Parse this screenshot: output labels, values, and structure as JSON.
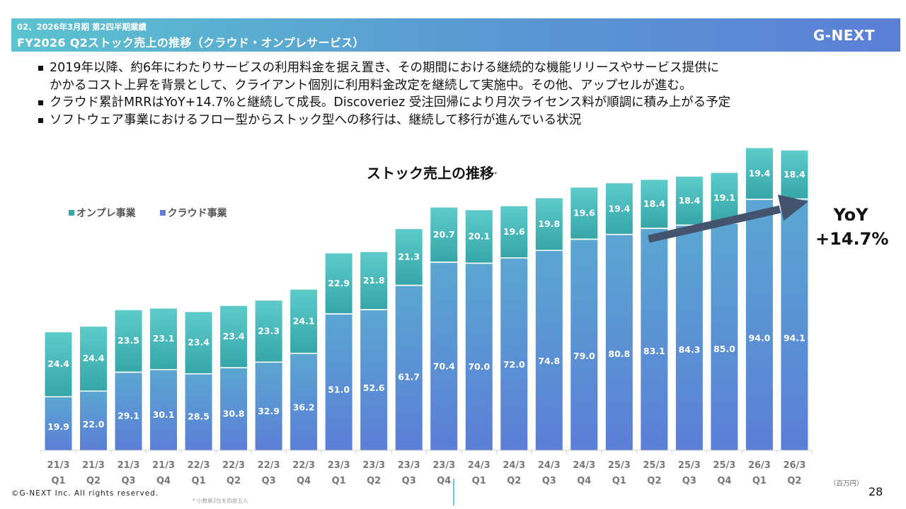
{
  "header": {
    "subtitle": "02、2026年3月期 第2四半期業績",
    "title": "FY2026 Q2ストック売上の推移（クラウド・オンプレサービス）",
    "brand": "G-NEXT"
  },
  "bullets": [
    "2019年以降、約6年にわたりサービスの利用料金を据え置き、その期間における継続的な機能リリースやサービス提供に",
    "かかるコスト上昇を背景として、クライアント個別に利用料金改定を継続して実施中。その他、アップセルが進む。",
    "クラウド累計MRRはYoY+14.7%と継続して成長。Discoveriez 受注回帰により月次ライセンス料が順調に積み上がる予定",
    "ソフトウェア事業におけるフロー型からストック型への移行は、継続して移行が進んでいる状況"
  ],
  "bullet_marks": [
    true,
    false,
    true,
    true
  ],
  "colors": {
    "onprem_top": "#5ecbcb",
    "onprem_bottom": "#36a6a8",
    "cloud_top": "#5ba6d2",
    "cloud_bottom": "#5b7ed6",
    "arrow": "#45546e",
    "header_start": "#5bc3d0",
    "header_end": "#5b7fd6"
  },
  "chart_data": {
    "type": "bar",
    "stacked": true,
    "title": "ストック売上の推移",
    "title_note": "*",
    "xlabel": "",
    "ylabel": "",
    "unit": "（百万円）",
    "categories": [
      [
        "21/3",
        "Q1"
      ],
      [
        "21/3",
        "Q2"
      ],
      [
        "21/3",
        "Q3"
      ],
      [
        "21/3",
        "Q4"
      ],
      [
        "22/3",
        "Q1"
      ],
      [
        "22/3",
        "Q2"
      ],
      [
        "22/3",
        "Q3"
      ],
      [
        "22/3",
        "Q4"
      ],
      [
        "23/3",
        "Q1"
      ],
      [
        "23/3",
        "Q2"
      ],
      [
        "23/3",
        "Q3"
      ],
      [
        "23/3",
        "Q4"
      ],
      [
        "24/3",
        "Q1"
      ],
      [
        "24/3",
        "Q2"
      ],
      [
        "24/3",
        "Q3"
      ],
      [
        "24/3",
        "Q4"
      ],
      [
        "25/3",
        "Q1"
      ],
      [
        "25/3",
        "Q2"
      ],
      [
        "25/3",
        "Q3"
      ],
      [
        "25/3",
        "Q4"
      ],
      [
        "26/3",
        "Q1"
      ],
      [
        "26/3",
        "Q2"
      ]
    ],
    "series": [
      {
        "name": "クラウド事業",
        "values": [
          19.9,
          22.0,
          29.1,
          30.1,
          28.5,
          30.8,
          32.9,
          36.2,
          51.0,
          52.6,
          61.7,
          70.4,
          70.0,
          72.0,
          74.8,
          79.0,
          80.8,
          83.1,
          84.3,
          85.0,
          94.0,
          94.1
        ]
      },
      {
        "name": "オンプレ事業",
        "values": [
          24.4,
          24.4,
          23.5,
          23.1,
          23.4,
          23.4,
          23.3,
          24.1,
          22.9,
          21.8,
          21.3,
          20.7,
          20.1,
          19.6,
          19.8,
          19.6,
          19.4,
          18.4,
          18.4,
          19.1,
          19.4,
          18.4
        ]
      }
    ],
    "legend": [
      "オンプレ事業",
      "クラウド事業"
    ],
    "legend_position": "top-left",
    "grid": false,
    "ylim": [
      0,
      120
    ],
    "annotation": {
      "type": "arrow",
      "from_category": "25/3 Q2",
      "to_category": "26/3 Q2",
      "label_line1": "YoY",
      "label_line2": "+14.7%"
    }
  },
  "footer": {
    "unit_label": "（百万円）",
    "page_number": "28",
    "copyright": "©G-NEXT Inc. All rights reserved.",
    "footnote": "* 小数第2位を四捨五入"
  }
}
